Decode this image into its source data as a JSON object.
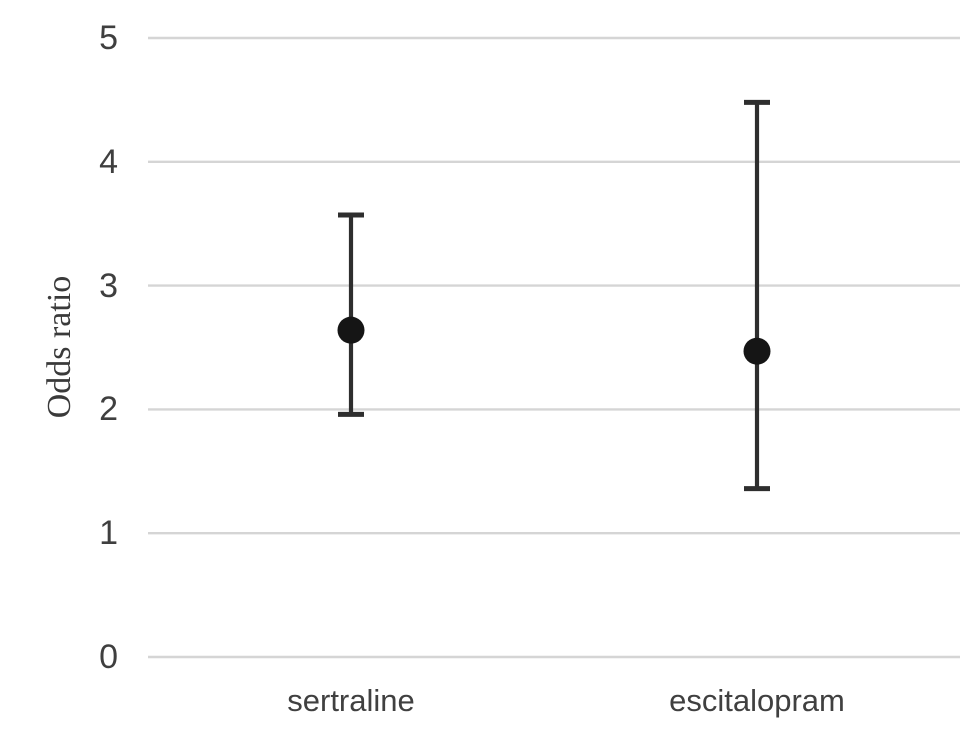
{
  "chart_data": {
    "type": "scatter",
    "subtype": "point-estimates-with-error-bars",
    "categories": [
      "sertraline",
      "escitalopram"
    ],
    "series": [
      {
        "name": "Odds ratio",
        "values": [
          2.64,
          2.47
        ],
        "ci_low": [
          1.96,
          1.36
        ],
        "ci_high": [
          3.57,
          4.48
        ]
      }
    ],
    "title": "",
    "xlabel": "",
    "ylabel": "Odds ratio",
    "ylim": [
      0,
      5
    ],
    "yticks": [
      0,
      1,
      2,
      3,
      4,
      5
    ],
    "grid": true,
    "legend_position": "none",
    "colors": {
      "marker": "#151515",
      "error_bar": "#2e2e2e",
      "gridline": "#d5d5d5",
      "tick_text": "#3f3f3f",
      "background": "#ffffff"
    }
  }
}
